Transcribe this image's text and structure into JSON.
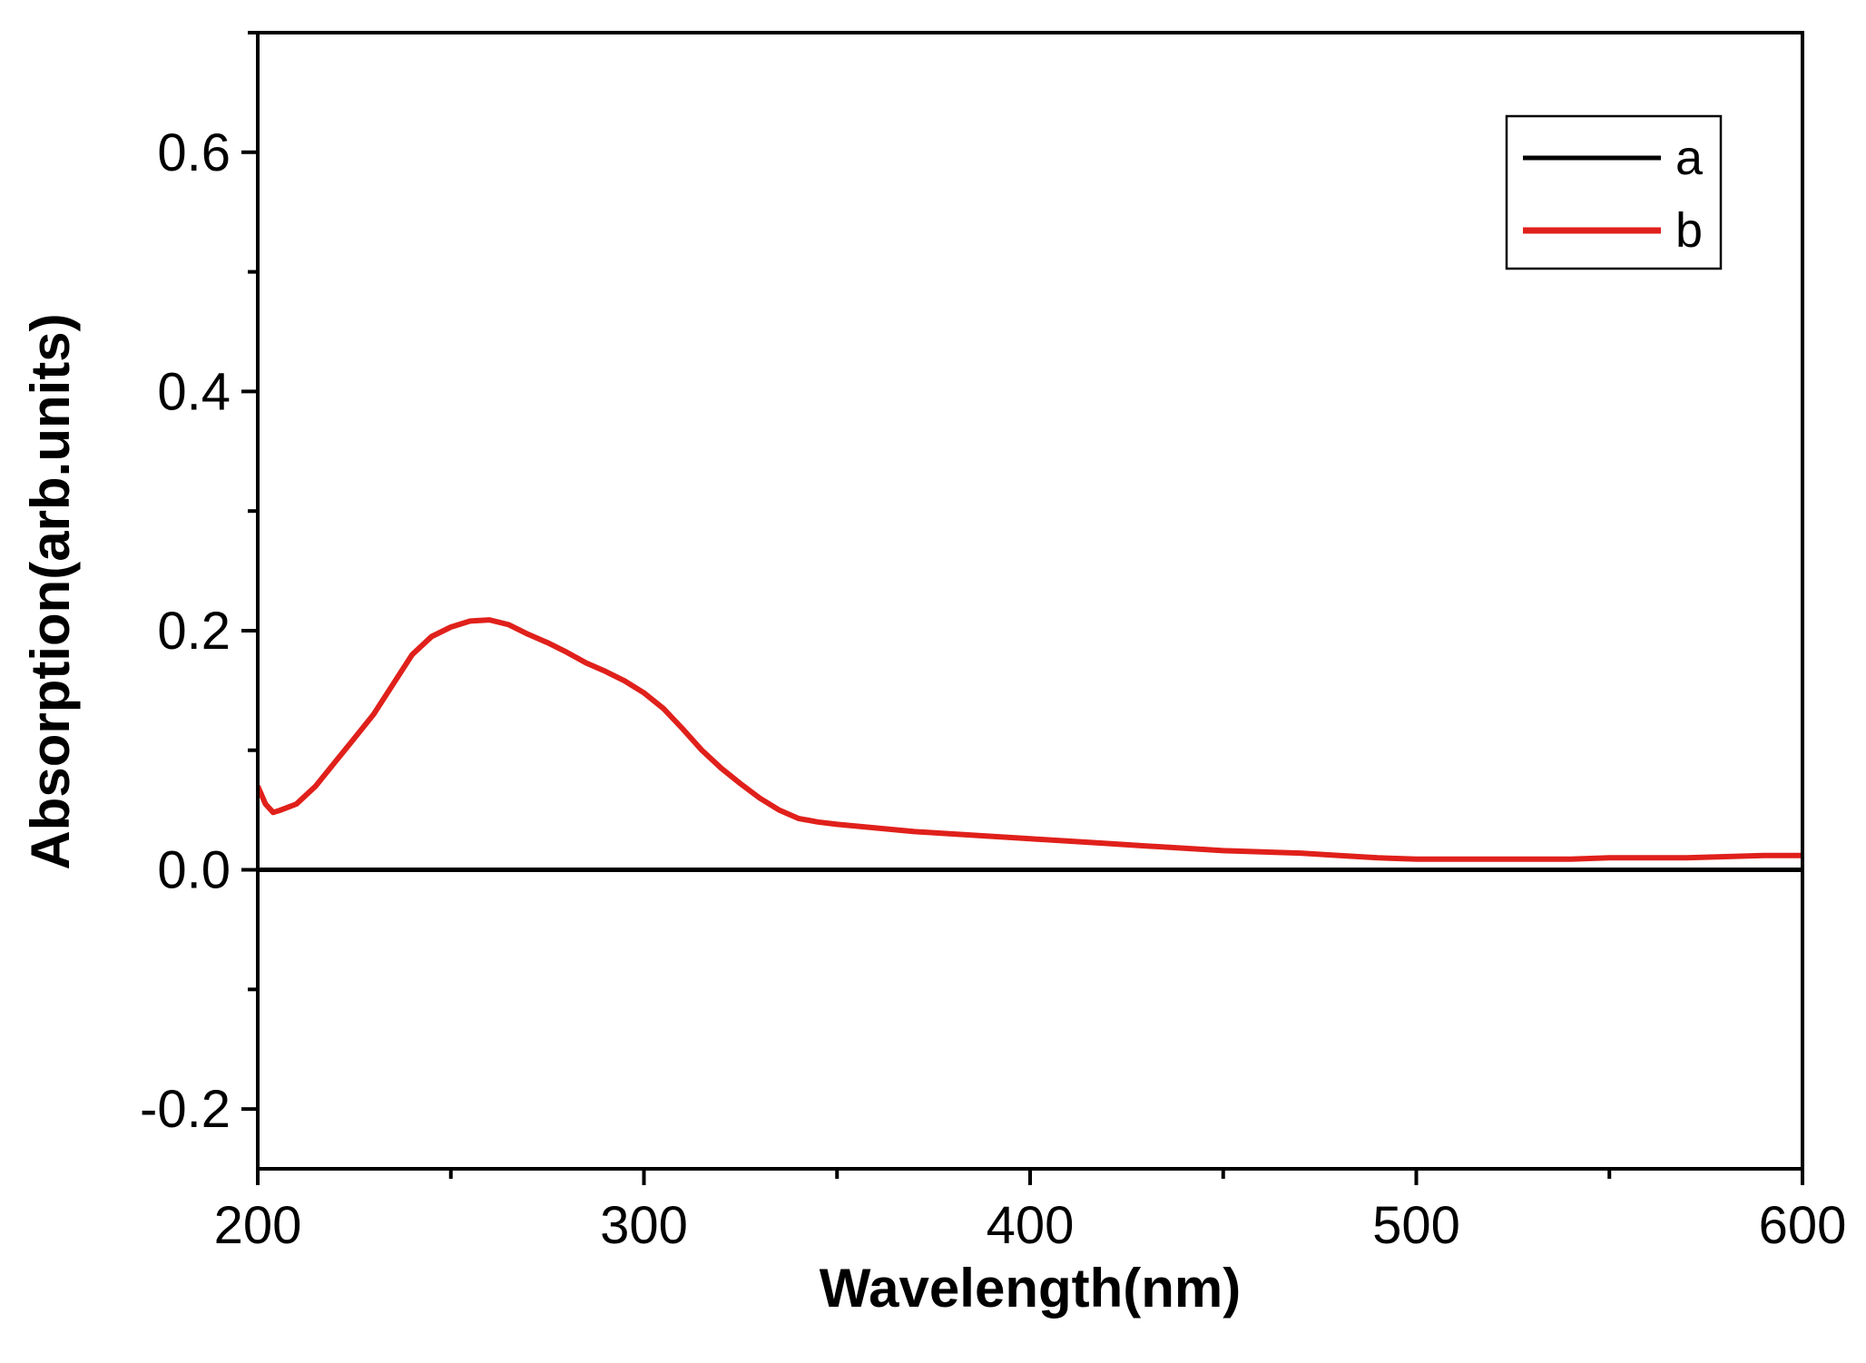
{
  "chart_data": {
    "type": "line",
    "xlabel": "Wavelength(nm)",
    "ylabel": "Absorption(arb.units)",
    "xlim": [
      200,
      600
    ],
    "ylim": [
      -0.25,
      0.7
    ],
    "x_ticks": [
      200,
      300,
      400,
      500,
      600
    ],
    "x_tick_labels": [
      "200",
      "300",
      "400",
      "500",
      "600"
    ],
    "y_ticks": [
      -0.2,
      0.0,
      0.2,
      0.4,
      0.6
    ],
    "y_tick_labels": [
      "-0.2",
      "0.0",
      "0.2",
      "0.4",
      "0.6"
    ],
    "grid": false,
    "legend_position": "top-right",
    "series": [
      {
        "name": "a",
        "color": "#000000",
        "x": [
          200,
          600
        ],
        "y": [
          0.0,
          0.0
        ]
      },
      {
        "name": "b",
        "color": "#e0201b",
        "x": [
          200,
          202,
          204,
          206,
          210,
          215,
          220,
          225,
          230,
          235,
          240,
          245,
          250,
          255,
          260,
          265,
          270,
          275,
          280,
          285,
          290,
          295,
          300,
          305,
          310,
          315,
          320,
          325,
          330,
          335,
          340,
          345,
          350,
          360,
          370,
          380,
          390,
          400,
          410,
          420,
          430,
          440,
          450,
          460,
          470,
          480,
          490,
          500,
          510,
          520,
          530,
          540,
          550,
          560,
          570,
          580,
          590,
          600
        ],
        "y": [
          0.07,
          0.055,
          0.048,
          0.05,
          0.055,
          0.07,
          0.09,
          0.11,
          0.13,
          0.155,
          0.18,
          0.195,
          0.203,
          0.208,
          0.209,
          0.205,
          0.197,
          0.19,
          0.182,
          0.173,
          0.166,
          0.158,
          0.148,
          0.135,
          0.118,
          0.1,
          0.085,
          0.072,
          0.06,
          0.05,
          0.043,
          0.04,
          0.038,
          0.035,
          0.032,
          0.03,
          0.028,
          0.026,
          0.024,
          0.022,
          0.02,
          0.018,
          0.016,
          0.015,
          0.014,
          0.012,
          0.01,
          0.009,
          0.009,
          0.009,
          0.009,
          0.009,
          0.01,
          0.01,
          0.01,
          0.011,
          0.012,
          0.012
        ]
      }
    ]
  }
}
